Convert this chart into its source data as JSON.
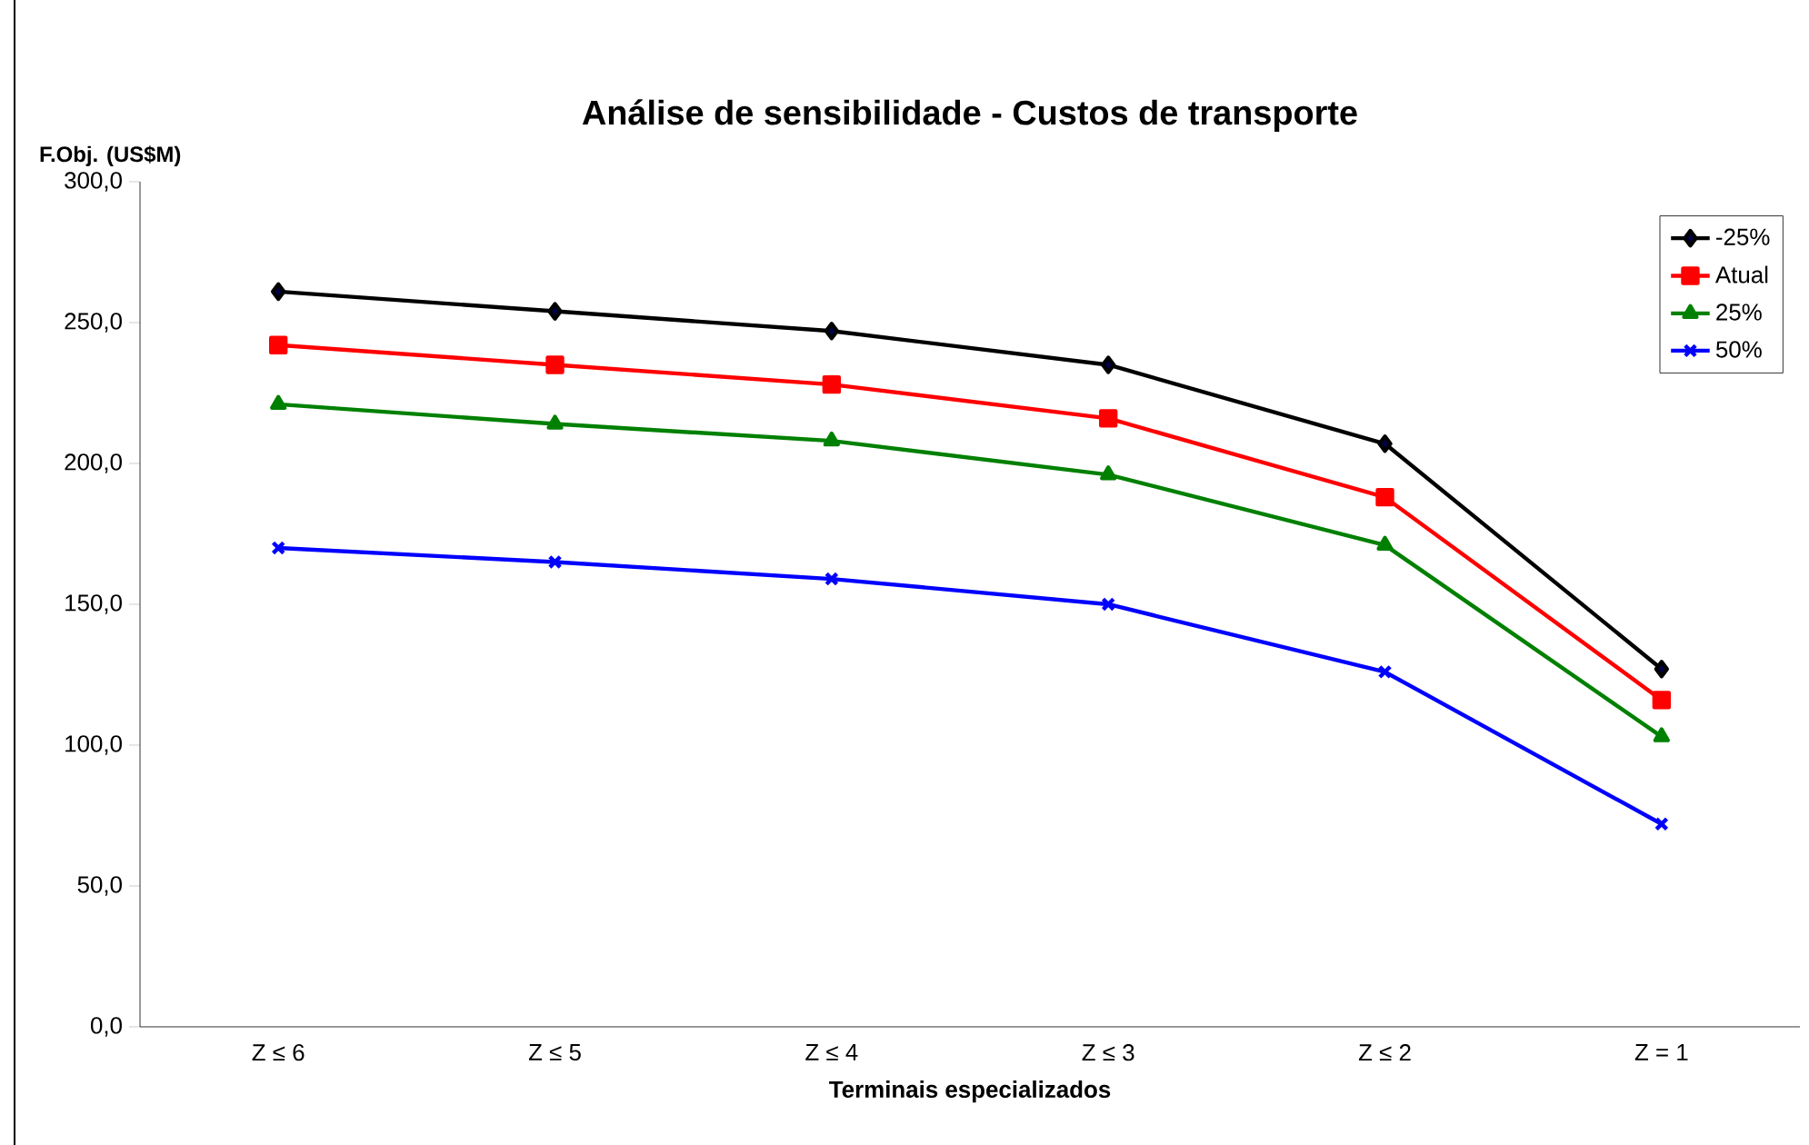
{
  "chart_data": {
    "type": "line",
    "title": "Análise de sensibilidade  - Custos de transporte",
    "xlabel": "Terminais especializados",
    "ylabel": "F.Obj. (US$M)",
    "categories": [
      "Z ≤ 6",
      "Z ≤ 5",
      "Z ≤ 4",
      "Z ≤ 3",
      "Z ≤ 2",
      "Z = 1"
    ],
    "series": [
      {
        "name": "-25%",
        "color": "#000000",
        "marker": "diamond",
        "values": [
          261,
          254,
          247,
          235,
          207,
          127
        ]
      },
      {
        "name": "Atual",
        "color": "#ff0000",
        "marker": "square",
        "values": [
          242,
          235,
          228,
          216,
          188,
          116
        ]
      },
      {
        "name": "25%",
        "color": "#008000",
        "marker": "triangle",
        "values": [
          221,
          214,
          208,
          196,
          171,
          103
        ]
      },
      {
        "name": "50%",
        "color": "#0000ff",
        "marker": "cross",
        "values": [
          170,
          165,
          159,
          150,
          126,
          72
        ]
      }
    ],
    "ylim": [
      0,
      300
    ],
    "yticks": [
      {
        "value": 0,
        "label": "0,0"
      },
      {
        "value": 50,
        "label": "50,0"
      },
      {
        "value": 100,
        "label": "100,0"
      },
      {
        "value": 150,
        "label": "150,0"
      },
      {
        "value": 200,
        "label": "200,0"
      },
      {
        "value": 250,
        "label": "250,0"
      },
      {
        "value": 300,
        "label": "300,0"
      }
    ],
    "grid": false,
    "legend": "top right",
    "line_style": "solid"
  }
}
